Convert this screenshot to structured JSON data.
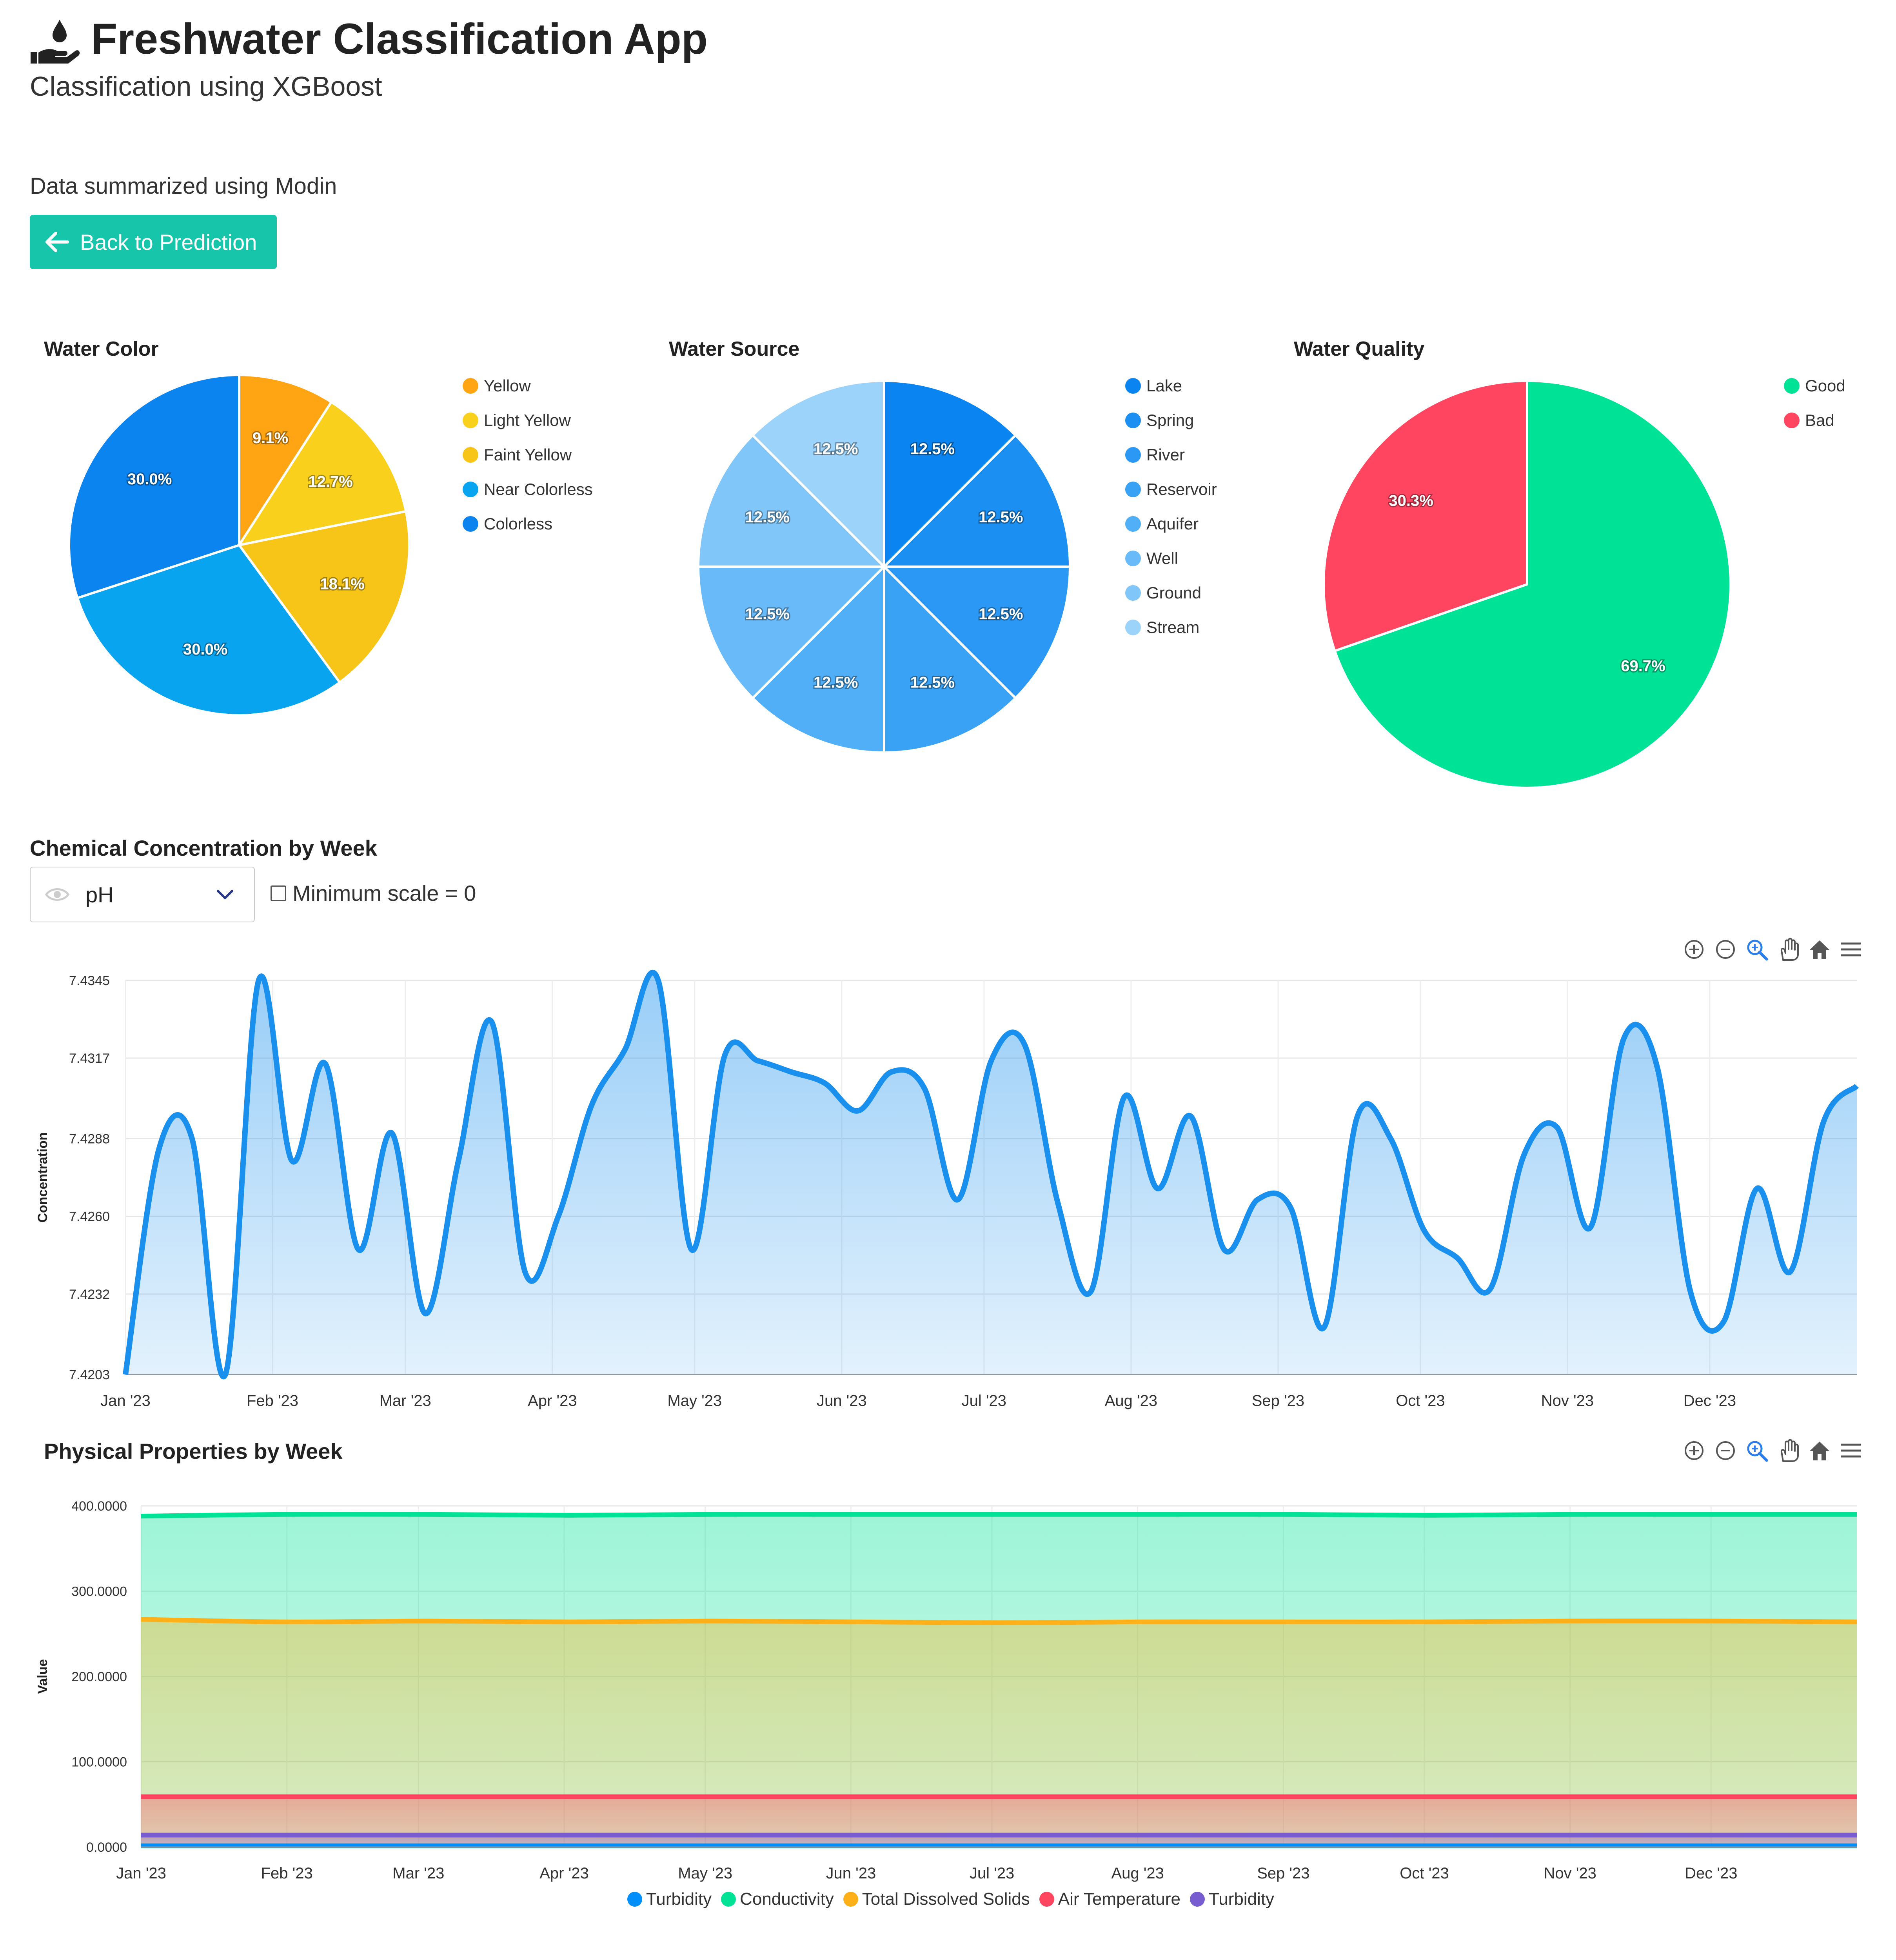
{
  "header": {
    "title": "Freshwater Classification App",
    "subtitle": "Classification using XGBoost",
    "icon": "hand-water-drop-icon"
  },
  "summary_text": "Data summarized using Modin",
  "back_button": {
    "label": "Back to Prediction",
    "icon": "arrow-left-icon"
  },
  "colors": {
    "accent": "#17c6aa"
  },
  "pies": [
    {
      "title": "Water Color",
      "legend": [
        "Yellow",
        "Light Yellow",
        "Faint Yellow",
        "Near Colorless",
        "Colorless"
      ],
      "colors": [
        "#ffa412",
        "#f9d11c",
        "#f7c418",
        "#08a4f0",
        "#0b84f0"
      ]
    },
    {
      "title": "Water Source",
      "legend": [
        "Lake",
        "Spring",
        "River",
        "Reservoir",
        "Aquifer",
        "Well",
        "Ground",
        "Stream"
      ],
      "colors": [
        "#0a84f0",
        "#1c8ff2",
        "#2a98f4",
        "#3aa2f5",
        "#50aff7",
        "#68bbf8",
        "#80c6f9",
        "#9cd3fb"
      ]
    },
    {
      "title": "Water Quality",
      "legend": [
        "Good",
        "Bad"
      ],
      "colors": [
        "#00e396",
        "#ff4560"
      ]
    }
  ],
  "chemical": {
    "title": "Chemical Concentration by Week",
    "selected_metric": "pH",
    "min_scale_label": "Minimum scale = 0",
    "min_scale_checked": false,
    "toolbar_icons": [
      "zoom-in-icon",
      "zoom-out-icon",
      "zoom-select-icon",
      "pan-hand-icon",
      "reset-home-icon",
      "menu-icon"
    ]
  },
  "physical": {
    "title": "Physical Properties by Week",
    "toolbar_icons": [
      "zoom-in-icon",
      "zoom-out-icon",
      "zoom-select-icon",
      "pan-hand-icon",
      "reset-home-icon",
      "menu-icon"
    ]
  },
  "chart_data": [
    {
      "type": "pie",
      "title": "Water Color",
      "categories": [
        "Yellow",
        "Light Yellow",
        "Faint Yellow",
        "Near Colorless",
        "Colorless"
      ],
      "values": [
        9.1,
        12.7,
        18.1,
        30.0,
        30.0
      ],
      "labels": [
        "9.1%",
        "12.7%",
        "18.1%",
        "30.0%",
        "30.0%"
      ],
      "legend_position": "right"
    },
    {
      "type": "pie",
      "title": "Water Source",
      "categories": [
        "Lake",
        "Spring",
        "River",
        "Reservoir",
        "Aquifer",
        "Well",
        "Ground",
        "Stream"
      ],
      "values": [
        12.5,
        12.5,
        12.5,
        12.5,
        12.5,
        12.5,
        12.5,
        12.5
      ],
      "labels": [
        "12.5%",
        "12.5%",
        "12.5%",
        "12.5%",
        "12.5%",
        "12.5%",
        "12.5%",
        "12.5%"
      ],
      "legend_position": "right"
    },
    {
      "type": "pie",
      "title": "Water Quality",
      "categories": [
        "Good",
        "Bad"
      ],
      "values": [
        69.7,
        30.3
      ],
      "labels": [
        "69.7%",
        "30.3%"
      ],
      "legend_position": "right"
    },
    {
      "type": "area",
      "title": "Chemical Concentration by Week",
      "ylabel": "Concentration",
      "xlabel": "",
      "x_ticks": [
        "Jan '23",
        "Feb '23",
        "Mar '23",
        "Apr '23",
        "May '23",
        "Jun '23",
        "Jul '23",
        "Aug '23",
        "Sep '23",
        "Oct '23",
        "Nov '23",
        "Dec '23"
      ],
      "y_ticks": [
        "7.4345",
        "7.4317",
        "7.4288",
        "7.4260",
        "7.4232",
        "7.4203"
      ],
      "ylim": [
        7.4203,
        7.4345
      ],
      "grid": true,
      "series": [
        {
          "color": "#1a90ee",
          "x": [
            "2023-01-01",
            "2023-01-08",
            "2023-01-15",
            "2023-01-22",
            "2023-01-29",
            "2023-02-05",
            "2023-02-12",
            "2023-02-19",
            "2023-02-26",
            "2023-03-05",
            "2023-03-12",
            "2023-03-19",
            "2023-03-26",
            "2023-04-02",
            "2023-04-09",
            "2023-04-16",
            "2023-04-23",
            "2023-04-30",
            "2023-05-07",
            "2023-05-14",
            "2023-05-21",
            "2023-05-28",
            "2023-06-04",
            "2023-06-11",
            "2023-06-18",
            "2023-06-25",
            "2023-07-02",
            "2023-07-09",
            "2023-07-16",
            "2023-07-23",
            "2023-07-30",
            "2023-08-06",
            "2023-08-13",
            "2023-08-20",
            "2023-08-27",
            "2023-09-03",
            "2023-09-10",
            "2023-09-17",
            "2023-09-24",
            "2023-10-01",
            "2023-10-08",
            "2023-10-15",
            "2023-10-22",
            "2023-10-29",
            "2023-11-05",
            "2023-11-12",
            "2023-11-19",
            "2023-11-26",
            "2023-12-03",
            "2023-12-10",
            "2023-12-17",
            "2023-12-24",
            "2023-12-31"
          ],
          "values": [
            7.4203,
            7.4284,
            7.4288,
            7.4203,
            7.4345,
            7.428,
            7.4315,
            7.4248,
            7.429,
            7.4225,
            7.428,
            7.433,
            7.424,
            7.426,
            7.43,
            7.432,
            7.4345,
            7.4248,
            7.4318,
            7.4316,
            7.4312,
            7.4308,
            7.4298,
            7.4312,
            7.4306,
            7.4266,
            7.4316,
            7.4322,
            7.4265,
            7.4233,
            7.4303,
            7.427,
            7.4296,
            7.4248,
            7.4266,
            7.4263,
            7.422,
            7.4296,
            7.4288,
            7.4255,
            7.4245,
            7.4234,
            7.4282,
            7.4292,
            7.4256,
            7.4324,
            7.4314,
            7.4233,
            7.4222,
            7.427,
            7.424,
            7.4294,
            7.4307
          ]
        }
      ]
    },
    {
      "type": "area",
      "title": "Physical Properties by Week",
      "ylabel": "Value",
      "xlabel": "",
      "x_ticks": [
        "Jan '23",
        "Feb '23",
        "Mar '23",
        "Apr '23",
        "May '23",
        "Jun '23",
        "Jul '23",
        "Aug '23",
        "Sep '23",
        "Oct '23",
        "Nov '23",
        "Dec '23"
      ],
      "y_ticks": [
        "400.0000",
        "300.0000",
        "200.0000",
        "100.0000",
        "0.0000"
      ],
      "ylim": [
        0,
        400
      ],
      "grid": true,
      "legend_position": "bottom",
      "series": [
        {
          "name": "Turbidity",
          "color": "#008ffb",
          "values": [
            1.5,
            1.5,
            1.5,
            1.5,
            1.5,
            1.5,
            1.5,
            1.5,
            1.5,
            1.5,
            1.5,
            1.5,
            1.5
          ]
        },
        {
          "name": "Conductivity",
          "color": "#00e396",
          "values": [
            388,
            390,
            390,
            389,
            390,
            390,
            390,
            390,
            390,
            389,
            390,
            390,
            390
          ]
        },
        {
          "name": "Total Dissolved Solids",
          "color": "#feb019",
          "values": [
            267,
            264,
            265,
            264,
            265,
            264,
            263,
            264,
            264,
            264,
            265,
            265,
            264
          ]
        },
        {
          "name": "Air Temperature",
          "color": "#ff4560",
          "values": [
            59,
            59,
            59,
            59,
            59,
            59,
            59,
            59,
            59,
            59,
            59,
            59,
            59
          ]
        },
        {
          "name": "Turbidity",
          "color": "#775dd0",
          "values": [
            14,
            14,
            14,
            14,
            14,
            14,
            14,
            14,
            14,
            14,
            14,
            14,
            14
          ]
        }
      ]
    }
  ]
}
